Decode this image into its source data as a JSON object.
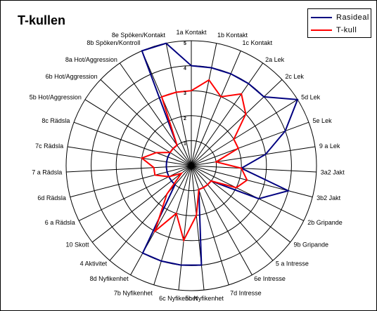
{
  "chart_data": {
    "type": "radar",
    "title": "T-kullen",
    "categories": [
      "1a Kontakt",
      "1b Kontakt",
      "1c Kontakt",
      "2a Lek",
      "2c Lek",
      "5d Lek",
      "5e Lek",
      "9 a Lek",
      "3a2 Jakt",
      "3b2 Jakt",
      "2b Gripande",
      "9b Gripande",
      "5 a Intresse",
      "6e Intresse",
      "7d Intresse",
      "5c Nyfikenhet",
      "6c Nyfikenhet",
      "7b Nyfikenhet",
      "8d Nyfikenhet",
      "4 Aktivitet",
      "10 Skott",
      "6 a Rädsla",
      "6d Rädsla",
      "7 a Rädsla",
      "7c Rädsla",
      "8c Rädsla",
      "5b Hot/Aggression",
      "6b Hot/Aggression",
      "8a Hot/Aggression",
      "8b Spöken/Kontroll",
      "8e Spöken/Kontakt"
    ],
    "rmin": 0,
    "rmax": 5,
    "ticks": [
      "1",
      "2",
      "3",
      "4",
      "5"
    ],
    "series": [
      {
        "name": "Rasideal",
        "color": "#000080",
        "values": [
          4,
          4,
          4,
          4,
          4,
          5,
          4,
          3,
          2,
          4,
          3,
          1,
          1,
          1,
          1,
          4,
          4,
          4,
          4,
          1,
          1,
          1,
          1,
          1,
          1,
          1,
          1,
          1,
          1,
          5,
          5
        ]
      },
      {
        "name": "T-kull",
        "color": "#ff0000",
        "values": [
          3,
          3.5,
          3,
          3.5,
          3,
          2,
          2,
          1,
          2,
          2.3,
          2,
          1,
          1,
          1,
          1,
          2,
          3,
          2,
          3,
          1.5,
          0.5,
          1,
          1.5,
          1.5,
          2,
          1.5,
          1,
          1,
          1,
          3,
          3
        ]
      }
    ],
    "legend": {
      "position": "top-right"
    },
    "grid": true
  }
}
